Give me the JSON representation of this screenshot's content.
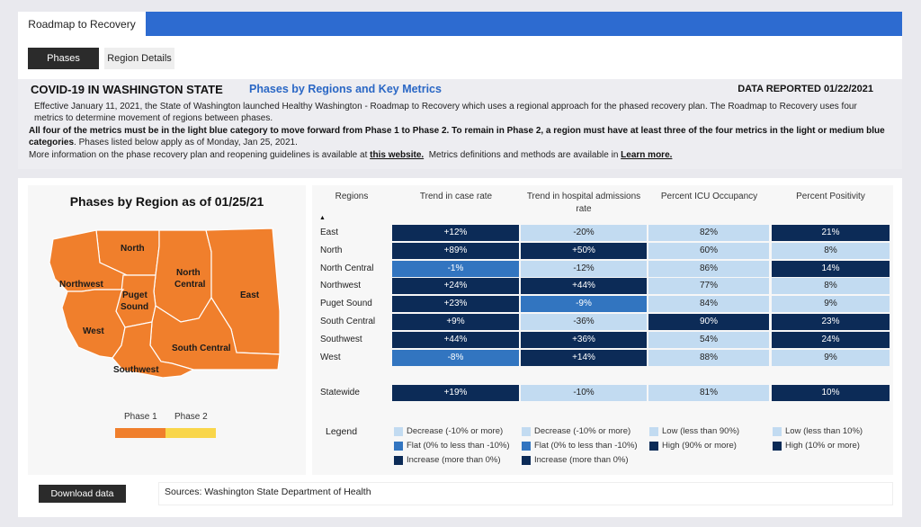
{
  "tabs": {
    "main": "Roadmap to Recovery"
  },
  "subtabs": {
    "phases": "Phases",
    "region_details": "Region Details"
  },
  "header": {
    "title": "COVID-19 IN WASHINGTON STATE",
    "subtitle": "Phases by Regions and Key Metrics",
    "data_reported": "DATA REPORTED 01/22/2021",
    "para1": "Effective January 11, 2021, the State of Washington launched Healthy Washington - Roadmap to Recovery which uses a regional approach for the phased recovery plan. The Roadmap to Recovery uses four metrics to determine movement of regions between phases.",
    "para2_bold": "All four of the metrics must be in the light blue category to move forward from Phase 1 to Phase 2. To remain in Phase 2, a region must have at least three of the four metrics in the light or medium blue categories",
    "para2_rest": ". Phases listed below apply as of Monday, Jan 25, 2021.",
    "para3_a": "More information on the phase recovery plan and reopening guidelines is available at ",
    "link1": "this website.",
    "para3_b": "  Metrics definitions and methods are available in ",
    "link2": "Learn more."
  },
  "map": {
    "title": "Phases by Region as of 01/25/21",
    "regions": {
      "north": "North",
      "northwest": "Northwest",
      "north_central_1": "North",
      "north_central_2": "Central",
      "puget_1": "Puget",
      "puget_2": "Sound",
      "east": "East",
      "west": "West",
      "south_central": "South Central",
      "southwest": "Southwest"
    },
    "legend": {
      "phase1": "Phase 1",
      "phase2": "Phase 2"
    },
    "colors": {
      "phase1": "#f07f2c",
      "phase2": "#f9d64a",
      "border": "#ffffff"
    }
  },
  "table": {
    "headers": {
      "regions": "Regions",
      "trend_case": "Trend in case rate",
      "trend_hosp_1": "Trend in hospital admissions",
      "trend_hosp_2": "rate",
      "icu": "Percent ICU Occupancy",
      "positivity": "Percent Positivity"
    },
    "sort_icon": "sort-ascending-icon",
    "rows": [
      {
        "region": "East",
        "case": "+12%",
        "case_c": "dark",
        "hosp": "-20%",
        "hosp_c": "light",
        "icu": "82%",
        "icu_c": "light",
        "pos": "21%",
        "pos_c": "dark"
      },
      {
        "region": "North",
        "case": "+89%",
        "case_c": "dark",
        "hosp": "+50%",
        "hosp_c": "dark",
        "icu": "60%",
        "icu_c": "light",
        "pos": "8%",
        "pos_c": "light"
      },
      {
        "region": "North Central",
        "case": "-1%",
        "case_c": "mid",
        "hosp": "-12%",
        "hosp_c": "light",
        "icu": "86%",
        "icu_c": "light",
        "pos": "14%",
        "pos_c": "dark"
      },
      {
        "region": "Northwest",
        "case": "+24%",
        "case_c": "dark",
        "hosp": "+44%",
        "hosp_c": "dark",
        "icu": "77%",
        "icu_c": "light",
        "pos": "8%",
        "pos_c": "light"
      },
      {
        "region": "Puget Sound",
        "case": "+23%",
        "case_c": "dark",
        "hosp": "-9%",
        "hosp_c": "mid",
        "icu": "84%",
        "icu_c": "light",
        "pos": "9%",
        "pos_c": "light"
      },
      {
        "region": "South Central",
        "case": "+9%",
        "case_c": "dark",
        "hosp": "-36%",
        "hosp_c": "light",
        "icu": "90%",
        "icu_c": "dark",
        "pos": "23%",
        "pos_c": "dark"
      },
      {
        "region": "Southwest",
        "case": "+44%",
        "case_c": "dark",
        "hosp": "+36%",
        "hosp_c": "dark",
        "icu": "54%",
        "icu_c": "light",
        "pos": "24%",
        "pos_c": "dark"
      },
      {
        "region": "West",
        "case": "-8%",
        "case_c": "mid",
        "hosp": "+14%",
        "hosp_c": "dark",
        "icu": "88%",
        "icu_c": "light",
        "pos": "9%",
        "pos_c": "light"
      }
    ],
    "statewide": {
      "region": "Statewide",
      "case": "+19%",
      "case_c": "dark",
      "hosp": "-10%",
      "hosp_c": "light",
      "icu": "81%",
      "icu_c": "light",
      "pos": "10%",
      "pos_c": "dark"
    },
    "colors": {
      "dark": "#0c2b57",
      "mid": "#3275c0",
      "light": "#c2dbf1"
    }
  },
  "legend": {
    "title": "Legend",
    "col1": [
      "Decrease (-10% or more)",
      "Flat (0% to less than -10%)",
      "Increase (more than 0%)"
    ],
    "col2": [
      "Decrease (-10% or more)",
      "Flat (0% to less than -10%)",
      "Increase (more than 0%)"
    ],
    "col3": [
      "Low (less than 90%)",
      "High (90% or more)"
    ],
    "col4": [
      "Low (less than 10%)",
      "High (10% or more)"
    ]
  },
  "footer": {
    "download": "Download data",
    "sources": "Sources: Washington State Department of Health"
  }
}
